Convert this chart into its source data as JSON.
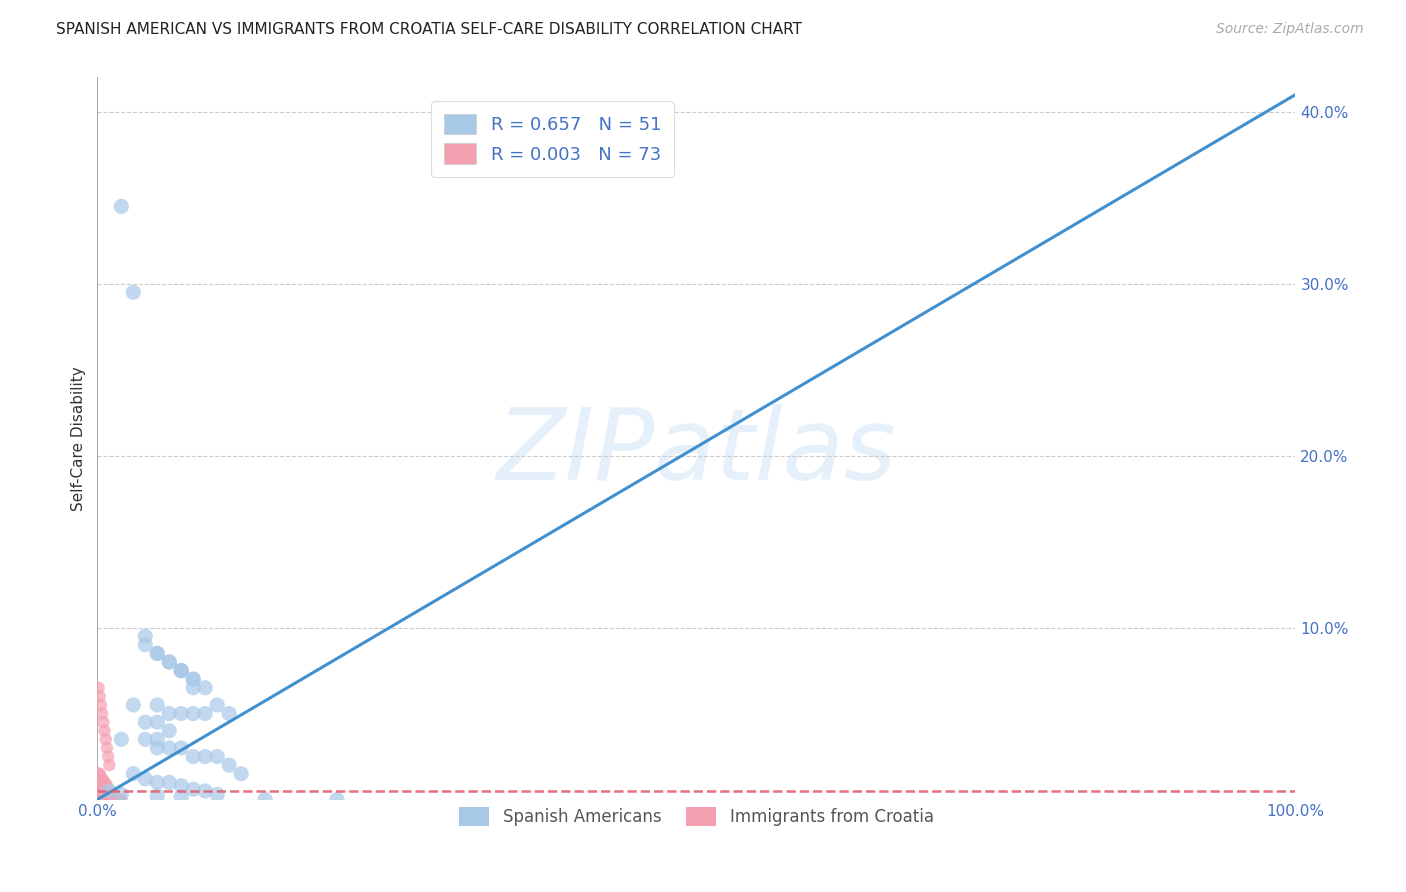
{
  "title": "SPANISH AMERICAN VS IMMIGRANTS FROM CROATIA SELF-CARE DISABILITY CORRELATION CHART",
  "source": "Source: ZipAtlas.com",
  "ylabel": "Self-Care Disability",
  "watermark": "ZIPatlas",
  "xlim": [
    0,
    1.0
  ],
  "ylim": [
    0,
    0.42
  ],
  "legend_r1": "R = 0.657",
  "legend_n1": "N = 51",
  "legend_r2": "R = 0.003",
  "legend_n2": "N = 73",
  "blue_color": "#a8c8e8",
  "pink_color": "#f4a0b0",
  "line_blue": "#4090d0",
  "line_pink": "#e06070",
  "blue_scatter_x": [
    0.02,
    0.03,
    0.04,
    0.05,
    0.06,
    0.07,
    0.08,
    0.09,
    0.04,
    0.05,
    0.06,
    0.07,
    0.08,
    0.03,
    0.05,
    0.06,
    0.07,
    0.08,
    0.09,
    0.1,
    0.11,
    0.04,
    0.05,
    0.06,
    0.02,
    0.04,
    0.05,
    0.05,
    0.06,
    0.07,
    0.08,
    0.09,
    0.1,
    0.11,
    0.12,
    0.07,
    0.08,
    0.03,
    0.04,
    0.05,
    0.06,
    0.07,
    0.08,
    0.09,
    0.1,
    0.05,
    0.07,
    0.14,
    0.2,
    0.01,
    0.02
  ],
  "blue_scatter_y": [
    0.345,
    0.295,
    0.095,
    0.085,
    0.08,
    0.075,
    0.07,
    0.065,
    0.09,
    0.085,
    0.08,
    0.075,
    0.07,
    0.055,
    0.055,
    0.05,
    0.05,
    0.05,
    0.05,
    0.055,
    0.05,
    0.045,
    0.045,
    0.04,
    0.035,
    0.035,
    0.035,
    0.03,
    0.03,
    0.03,
    0.025,
    0.025,
    0.025,
    0.02,
    0.015,
    0.075,
    0.065,
    0.015,
    0.012,
    0.01,
    0.01,
    0.008,
    0.006,
    0.005,
    0.003,
    0.002,
    0.0015,
    0.0,
    0.0,
    0.005,
    0.003
  ],
  "pink_scatter_x": [
    0.001,
    0.002,
    0.003,
    0.004,
    0.005,
    0.006,
    0.007,
    0.008,
    0.009,
    0.01,
    0.001,
    0.002,
    0.003,
    0.004,
    0.005,
    0.006,
    0.007,
    0.008,
    0.001,
    0.002,
    0.003,
    0.004,
    0.005,
    0.006,
    0.007,
    0.001,
    0.002,
    0.003,
    0.004,
    0.005,
    0.001,
    0.002,
    0.003,
    0.004,
    0.001,
    0.002,
    0.003,
    0.001,
    0.002,
    0.001,
    0.003,
    0.005,
    0.007,
    0.009,
    0.011,
    0.013,
    0.015,
    0.017,
    0.019,
    0.02,
    0.003,
    0.005,
    0.007,
    0.009,
    0.011,
    0.001,
    0.002,
    0.003,
    0.004,
    0.005,
    0.001,
    0.002,
    0.001,
    0.002,
    0.003,
    0.001,
    0.002,
    0.001,
    0.001,
    0.001,
    0.001,
    0.001,
    0.001
  ],
  "pink_scatter_y": [
    0.065,
    0.06,
    0.055,
    0.05,
    0.045,
    0.04,
    0.035,
    0.03,
    0.025,
    0.02,
    0.015,
    0.015,
    0.013,
    0.012,
    0.011,
    0.01,
    0.009,
    0.008,
    0.007,
    0.007,
    0.006,
    0.006,
    0.005,
    0.005,
    0.004,
    0.004,
    0.004,
    0.003,
    0.003,
    0.003,
    0.002,
    0.002,
    0.002,
    0.001,
    0.001,
    0.001,
    0.001,
    0.0,
    0.0,
    0.0,
    0.0,
    0.0,
    0.0,
    0.0,
    0.0,
    0.0,
    0.0,
    0.0,
    0.0,
    0.0,
    0.0,
    0.0,
    0.0,
    0.0,
    0.0,
    0.0,
    0.0,
    0.0,
    0.0,
    0.0,
    0.0,
    0.0,
    0.0,
    0.0,
    0.0,
    0.0,
    0.0,
    0.0,
    0.0,
    0.0,
    0.0,
    0.0,
    0.0
  ],
  "blue_line_x0": 0.0,
  "blue_line_y0": 0.0,
  "blue_line_x1": 1.0,
  "blue_line_y1": 0.41,
  "pink_line_x0": 0.0,
  "pink_line_y0": 0.005,
  "pink_line_x1": 1.0,
  "pink_line_y1": 0.005,
  "background_color": "#ffffff",
  "grid_color": "#cccccc",
  "text_color": "#333333",
  "axis_label_color": "#4472c4",
  "scatter_size": 120,
  "pink_scatter_size": 80
}
